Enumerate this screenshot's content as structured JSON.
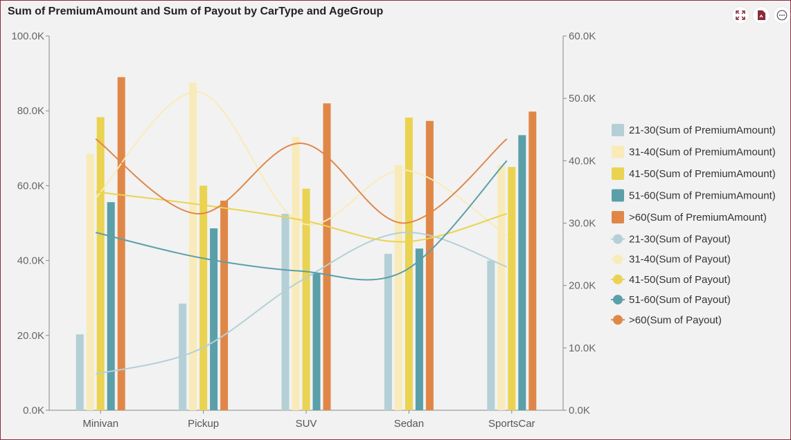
{
  "title": "Sum of PremiumAmount and Sum of Payout by CarType and AgeGroup",
  "toolbar": {
    "icons": [
      "expand-icon",
      "export-document-icon",
      "more-options-icon"
    ]
  },
  "colors": {
    "21-30": "#b4d0d6",
    "31-40": "#f9ebb9",
    "41-50": "#ead350",
    "51-60": "#5b9fa9",
    ">60": "#e08748",
    "border": "#8b2b3a"
  },
  "chart_data": {
    "type": "bar",
    "categories": [
      "Minivan",
      "Pickup",
      "SUV",
      "Sedan",
      "SportsCar"
    ],
    "y_left": {
      "ylim": [
        0,
        100000
      ],
      "ticks": [
        "0.0K",
        "20.0K",
        "40.0K",
        "60.0K",
        "80.0K",
        "100.0K"
      ]
    },
    "y_right": {
      "ylim": [
        0,
        60000
      ],
      "ticks": [
        "0.0K",
        "10.0K",
        "20.0K",
        "30.0K",
        "40.0K",
        "50.0K",
        "60.0K"
      ]
    },
    "bar_series": [
      {
        "name": "21-30(Sum of PremiumAmount)",
        "group": "21-30",
        "values": [
          20300,
          28500,
          52500,
          41800,
          40000
        ]
      },
      {
        "name": "31-40(Sum of PremiumAmount)",
        "group": "31-40",
        "values": [
          68500,
          87500,
          73000,
          65500,
          65500
        ]
      },
      {
        "name": "41-50(Sum of PremiumAmount)",
        "group": "41-50",
        "values": [
          78300,
          60000,
          59200,
          78200,
          65000
        ]
      },
      {
        "name": "51-60(Sum of PremiumAmount)",
        "group": "51-60",
        "values": [
          55600,
          48600,
          36600,
          43200,
          73500
        ]
      },
      {
        "name": ">60(Sum of PremiumAmount)",
        "group": ">60",
        "values": [
          89000,
          56000,
          82000,
          77300,
          79800
        ]
      }
    ],
    "line_series": [
      {
        "name": "21-30(Sum of Payout)",
        "group": "21-30",
        "values": [
          5800,
          9700,
          20800,
          28500,
          23000
        ]
      },
      {
        "name": "31-40(Sum of Payout)",
        "group": "31-40",
        "values": [
          34000,
          51000,
          30000,
          38500,
          28000
        ]
      },
      {
        "name": "41-50(Sum of Payout)",
        "group": "41-50",
        "values": [
          35000,
          33000,
          30500,
          27000,
          31500
        ]
      },
      {
        "name": "51-60(Sum of Payout)",
        "group": "51-60",
        "values": [
          28500,
          24500,
          22300,
          22300,
          40000
        ]
      },
      {
        "name": ">60(Sum of Payout)",
        "group": ">60",
        "values": [
          43500,
          31500,
          42800,
          30000,
          43500
        ]
      }
    ],
    "legend_position": "right"
  }
}
